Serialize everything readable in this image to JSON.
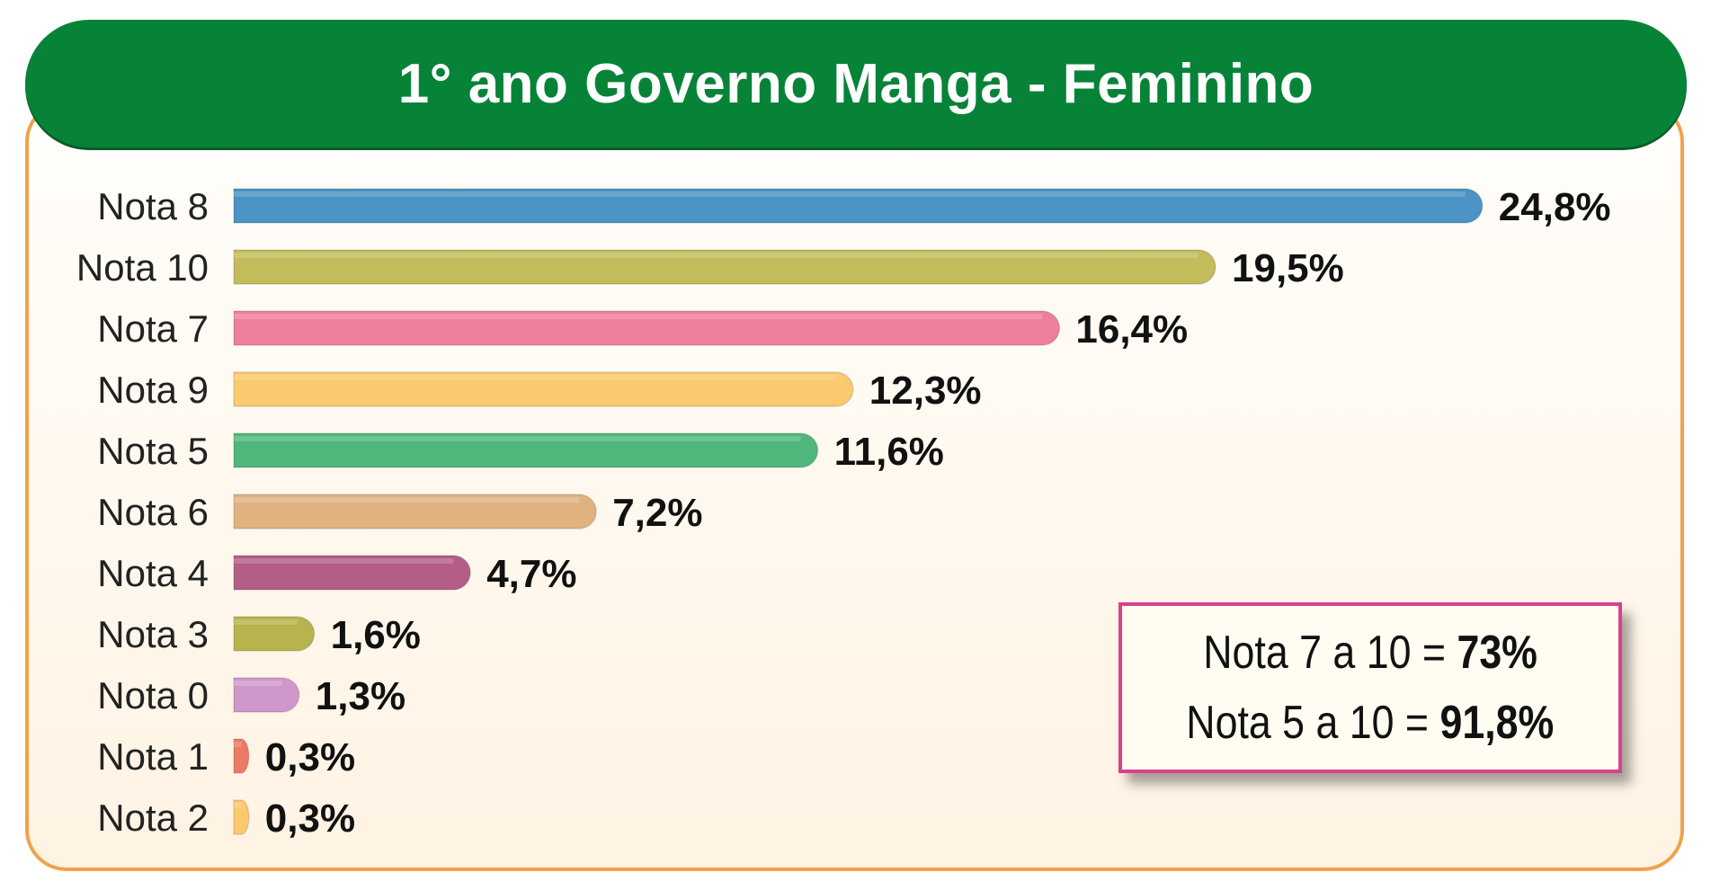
{
  "title": "1° ano Governo Manga - Feminino",
  "chart_data": {
    "type": "bar",
    "orientation": "horizontal",
    "title": "1° ano Governo Manga - Feminino",
    "categories": [
      "Nota 8",
      "Nota 10",
      "Nota 7",
      "Nota 9",
      "Nota 5",
      "Nota 6",
      "Nota 4",
      "Nota 3",
      "Nota 0",
      "Nota 1",
      "Nota 2"
    ],
    "values": [
      24.8,
      19.5,
      16.4,
      12.3,
      11.6,
      7.2,
      4.7,
      1.6,
      1.3,
      0.3,
      0.3
    ],
    "value_labels": [
      "24,8%",
      "19,5%",
      "16,4%",
      "12,3%",
      "11,6%",
      "7,2%",
      "4,7%",
      "1,6%",
      "1,3%",
      "0,3%",
      "0,3%"
    ],
    "colors": [
      "#4a93c4",
      "#c4bc5c",
      "#ee7f9a",
      "#fbc96e",
      "#4fb77b",
      "#dfb27f",
      "#b35d87",
      "#b7b44e",
      "#cf97ca",
      "#ec7b66",
      "#fcc96f"
    ],
    "xlabel": "",
    "ylabel": "",
    "grid": false,
    "legend": "none"
  },
  "summary": {
    "line1_prefix": "Nota 7 a 10 = ",
    "line1_value": "73%",
    "line2_prefix": "Nota 5 a 10 = ",
    "line2_value": "91,8%"
  },
  "colors": {
    "banner": "#078338",
    "frame_border": "#f0a24a",
    "summary_border": "#d9418c"
  }
}
